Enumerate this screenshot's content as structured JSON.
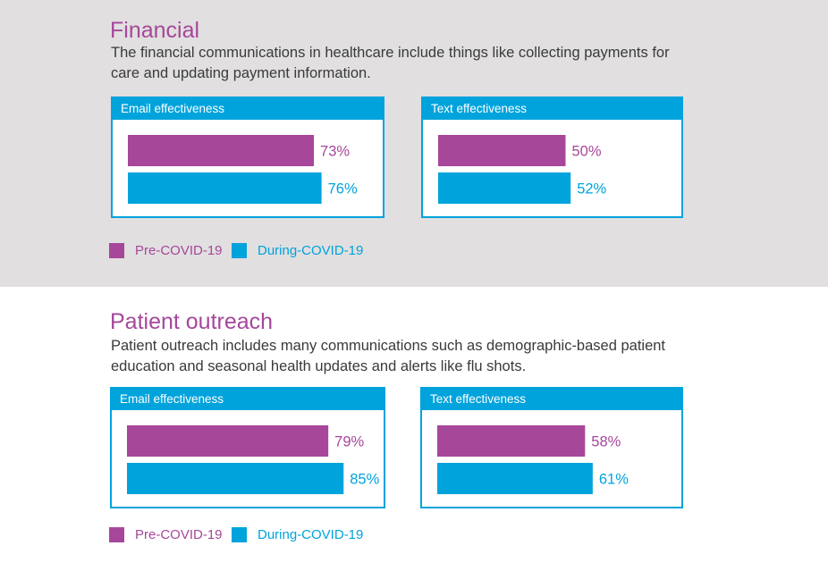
{
  "colors": {
    "pre": "#a6479a",
    "during": "#00a3dc"
  },
  "sections": [
    {
      "title": "Financial",
      "description": "The financial communications in healthcare include things like collecting payments for care and updating payment information."
    },
    {
      "title": "Patient outreach",
      "description": "Patient outreach includes many communications such as demographic-based patient education and seasonal health updates and alerts like flu shots."
    }
  ],
  "legend": {
    "pre": "Pre-COVID-19",
    "during": "During-COVID-19"
  },
  "chart_data": [
    {
      "type": "bar",
      "orientation": "horizontal",
      "section": "Financial",
      "title": "Email effectiveness",
      "categories": [
        "Pre-COVID-19",
        "During-COVID-19"
      ],
      "values": [
        73,
        76
      ],
      "labels": [
        "73%",
        "76%"
      ],
      "xlim": [
        0,
        100
      ]
    },
    {
      "type": "bar",
      "orientation": "horizontal",
      "section": "Financial",
      "title": "Text effectiveness",
      "categories": [
        "Pre-COVID-19",
        "During-COVID-19"
      ],
      "values": [
        50,
        52
      ],
      "labels": [
        "50%",
        "52%"
      ],
      "xlim": [
        0,
        100
      ]
    },
    {
      "type": "bar",
      "orientation": "horizontal",
      "section": "Patient outreach",
      "title": "Email effectiveness",
      "categories": [
        "Pre-COVID-19",
        "During-COVID-19"
      ],
      "values": [
        79,
        85
      ],
      "labels": [
        "79%",
        "85%"
      ],
      "xlim": [
        0,
        100
      ]
    },
    {
      "type": "bar",
      "orientation": "horizontal",
      "section": "Patient outreach",
      "title": "Text effectiveness",
      "categories": [
        "Pre-COVID-19",
        "During-COVID-19"
      ],
      "values": [
        58,
        61
      ],
      "labels": [
        "58%",
        "61%"
      ],
      "xlim": [
        0,
        100
      ]
    }
  ]
}
